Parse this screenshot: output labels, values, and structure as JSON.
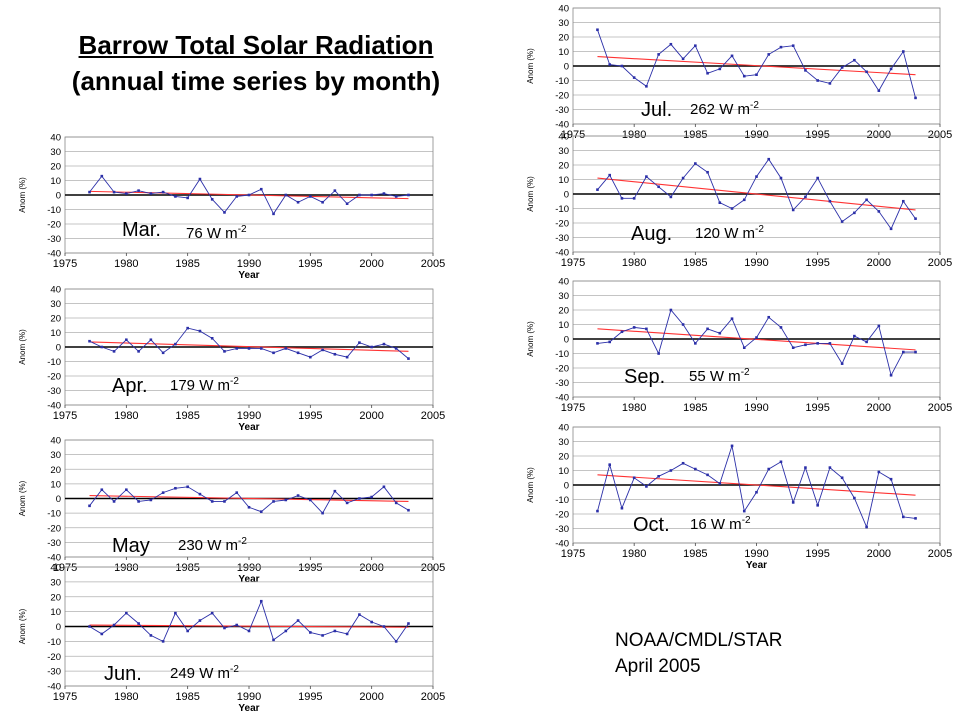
{
  "title": {
    "line1": "Barrow Total Solar Radiation",
    "line2": "(annual time series by month)"
  },
  "credit": {
    "line1": "NOAA/CMDL/STAR",
    "line2": "April 2005"
  },
  "colors": {
    "series": "#2b2fa8",
    "trend": "#ff3333",
    "zero_line": "#000000",
    "grid": "#b0b0b0"
  },
  "chart_data": [
    {
      "id": "mar",
      "type": "line",
      "month_label": "Mar.",
      "mean_label": "76 W m",
      "mean_exp": "-2",
      "xlabel": "Year",
      "ylabel": "Anom (%)",
      "xlim": [
        1975,
        2005
      ],
      "ylim": [
        -40,
        40
      ],
      "xticks": [
        1975,
        1980,
        1985,
        1990,
        1995,
        2000,
        2005
      ],
      "yticks": [
        -40,
        -30,
        -20,
        -10,
        0,
        10,
        20,
        30,
        40
      ],
      "grid": true,
      "x": [
        1977,
        1978,
        1979,
        1980,
        1981,
        1982,
        1983,
        1984,
        1985,
        1986,
        1987,
        1988,
        1989,
        1990,
        1991,
        1992,
        1993,
        1994,
        1995,
        1996,
        1997,
        1998,
        1999,
        2000,
        2001,
        2002,
        2003
      ],
      "values": [
        2,
        13,
        2,
        1,
        3,
        1,
        2,
        -1,
        -2,
        11,
        -3,
        -12,
        -1,
        0,
        4,
        -13,
        0,
        -5,
        -1,
        -5,
        3,
        -6,
        0,
        0,
        1,
        -1,
        0
      ],
      "trend": [
        [
          1977,
          2.5
        ],
        [
          2003,
          -2.5
        ]
      ]
    },
    {
      "id": "apr",
      "type": "line",
      "month_label": "Apr.",
      "mean_label": "179 W m",
      "mean_exp": "-2",
      "xlabel": "Year",
      "ylabel": "Anom (%)",
      "xlim": [
        1975,
        2005
      ],
      "ylim": [
        -40,
        40
      ],
      "xticks": [
        1975,
        1980,
        1985,
        1990,
        1995,
        2000,
        2005
      ],
      "yticks": [
        -40,
        -30,
        -20,
        -10,
        0,
        10,
        20,
        30,
        40
      ],
      "grid": true,
      "x": [
        1977,
        1978,
        1979,
        1980,
        1981,
        1982,
        1983,
        1984,
        1985,
        1986,
        1987,
        1988,
        1989,
        1990,
        1991,
        1992,
        1993,
        1994,
        1995,
        1996,
        1997,
        1998,
        1999,
        2000,
        2001,
        2002,
        2003
      ],
      "values": [
        4,
        0,
        -3,
        5,
        -3,
        5,
        -4,
        2,
        13,
        11,
        6,
        -3,
        -1,
        -1,
        -1,
        -4,
        -1,
        -4,
        -7,
        -2,
        -5,
        -7,
        3,
        0,
        2,
        -1,
        -8
      ],
      "trend": [
        [
          1977,
          3.5
        ],
        [
          2003,
          -3
        ]
      ]
    },
    {
      "id": "may",
      "type": "line",
      "month_label": "May",
      "mean_label": "230 W m",
      "mean_exp": "-2",
      "xlabel": "Year",
      "ylabel": "Anom (%)",
      "xlim": [
        1975,
        2005
      ],
      "ylim": [
        -40,
        40
      ],
      "xticks": [
        1975,
        1980,
        1985,
        1990,
        1995,
        2000,
        2005
      ],
      "yticks": [
        -40,
        -30,
        -20,
        -10,
        0,
        10,
        20,
        30,
        40
      ],
      "grid": true,
      "x": [
        1977,
        1978,
        1979,
        1980,
        1981,
        1982,
        1983,
        1984,
        1985,
        1986,
        1987,
        1988,
        1989,
        1990,
        1991,
        1992,
        1993,
        1994,
        1995,
        1996,
        1997,
        1998,
        1999,
        2000,
        2001,
        2002,
        2003
      ],
      "values": [
        -5,
        6,
        -2,
        6,
        -2,
        -1,
        4,
        7,
        8,
        3,
        -2,
        -2,
        4,
        -6,
        -9,
        -2,
        -1,
        2,
        -1,
        -10,
        5,
        -3,
        0,
        1,
        8,
        -3,
        -8
      ],
      "trend": [
        [
          1977,
          2
        ],
        [
          2003,
          -2
        ]
      ]
    },
    {
      "id": "jun",
      "type": "line",
      "month_label": "Jun.",
      "mean_label": "249 W m",
      "mean_exp": "-2",
      "xlabel": "Year",
      "ylabel": "Anom (%)",
      "xlim": [
        1975,
        2005
      ],
      "ylim": [
        -40,
        40
      ],
      "xticks": [
        1975,
        1980,
        1985,
        1990,
        1995,
        2000,
        2005
      ],
      "yticks": [
        -40,
        -30,
        -20,
        -10,
        0,
        10,
        20,
        30,
        40
      ],
      "grid": true,
      "x": [
        1977,
        1978,
        1979,
        1980,
        1981,
        1982,
        1983,
        1984,
        1985,
        1986,
        1987,
        1988,
        1989,
        1990,
        1991,
        1992,
        1993,
        1994,
        1995,
        1996,
        1997,
        1998,
        1999,
        2000,
        2001,
        2002,
        2003
      ],
      "values": [
        0,
        -5,
        1,
        9,
        2,
        -6,
        -10,
        9,
        -3,
        4,
        9,
        -1,
        1,
        -3,
        17,
        -9,
        -3,
        4,
        -4,
        -6,
        -3,
        -5,
        8,
        3,
        0,
        -10,
        2
      ],
      "trend": [
        [
          1977,
          1
        ],
        [
          2003,
          -0.5
        ]
      ]
    },
    {
      "id": "jul",
      "type": "line",
      "month_label": "Jul.",
      "mean_label": "262 W m",
      "mean_exp": "-2",
      "xlabel": "",
      "ylabel": "Anom (%)",
      "xlim": [
        1975,
        2005
      ],
      "ylim": [
        -40,
        40
      ],
      "xticks": [
        1975,
        1980,
        1985,
        1990,
        1995,
        2000,
        2005
      ],
      "yticks": [
        -40,
        -30,
        -20,
        -10,
        0,
        10,
        20,
        30,
        40
      ],
      "grid": true,
      "x": [
        1977,
        1978,
        1979,
        1980,
        1981,
        1982,
        1983,
        1984,
        1985,
        1986,
        1987,
        1988,
        1989,
        1990,
        1991,
        1992,
        1993,
        1994,
        1995,
        1996,
        1997,
        1998,
        1999,
        2000,
        2001,
        2002,
        2003
      ],
      "values": [
        25,
        1,
        0,
        -8,
        -14,
        8,
        15,
        5,
        14,
        -5,
        -2,
        7,
        -7,
        -6,
        8,
        13,
        14,
        -3,
        -10,
        -12,
        -1,
        4,
        -4,
        -17,
        -2,
        10,
        -22
      ],
      "trend": [
        [
          1977,
          6.5
        ],
        [
          2003,
          -6
        ]
      ]
    },
    {
      "id": "aug",
      "type": "line",
      "month_label": "Aug.",
      "mean_label": "120 W m",
      "mean_exp": "-2",
      "xlabel": "",
      "ylabel": "Anom (%)",
      "xlim": [
        1975,
        2005
      ],
      "ylim": [
        -40,
        40
      ],
      "xticks": [
        1975,
        1980,
        1985,
        1990,
        1995,
        2000,
        2005
      ],
      "yticks": [
        -40,
        -30,
        -20,
        -10,
        0,
        10,
        20,
        30,
        40
      ],
      "grid": true,
      "x": [
        1977,
        1978,
        1979,
        1980,
        1981,
        1982,
        1983,
        1984,
        1985,
        1986,
        1987,
        1988,
        1989,
        1990,
        1991,
        1992,
        1993,
        1994,
        1995,
        1996,
        1997,
        1998,
        1999,
        2000,
        2001,
        2002,
        2003
      ],
      "values": [
        3,
        13,
        -3,
        -3,
        12,
        5,
        -2,
        11,
        21,
        15,
        -6,
        -10,
        -4,
        12,
        24,
        11,
        -11,
        -2,
        11,
        -5,
        -19,
        -13,
        -4,
        -12,
        -24,
        -5,
        -17
      ],
      "trend": [
        [
          1977,
          11
        ],
        [
          2003,
          -11
        ]
      ]
    },
    {
      "id": "sep",
      "type": "line",
      "month_label": "Sep.",
      "mean_label": "55 W m",
      "mean_exp": "-2",
      "xlabel": "",
      "ylabel": "Anom (%)",
      "xlim": [
        1975,
        2005
      ],
      "ylim": [
        -40,
        40
      ],
      "xticks": [
        1975,
        1980,
        1985,
        1990,
        1995,
        2000,
        2005
      ],
      "yticks": [
        -40,
        -30,
        -20,
        -10,
        0,
        10,
        20,
        30,
        40
      ],
      "grid": true,
      "x": [
        1977,
        1978,
        1979,
        1980,
        1981,
        1982,
        1983,
        1984,
        1985,
        1986,
        1987,
        1988,
        1989,
        1990,
        1991,
        1992,
        1993,
        1994,
        1995,
        1996,
        1997,
        1998,
        1999,
        2000,
        2001,
        2002,
        2003
      ],
      "values": [
        -3,
        -2,
        5,
        8,
        7,
        -10,
        20,
        10,
        -3,
        7,
        4,
        14,
        -6,
        1,
        15,
        8,
        -6,
        -4,
        -3,
        -3,
        -17,
        2,
        -2,
        9,
        -25,
        -9,
        -9
      ],
      "trend": [
        [
          1977,
          7
        ],
        [
          2003,
          -7.5
        ]
      ]
    },
    {
      "id": "oct",
      "type": "line",
      "month_label": "Oct.",
      "mean_label": "16 W m",
      "mean_exp": "-2",
      "xlabel": "Year",
      "ylabel": "Anom (%)",
      "xlim": [
        1975,
        2005
      ],
      "ylim": [
        -40,
        40
      ],
      "xticks": [
        1975,
        1980,
        1985,
        1990,
        1995,
        2000,
        2005
      ],
      "yticks": [
        -40,
        -30,
        -20,
        -10,
        0,
        10,
        20,
        30,
        40
      ],
      "grid": true,
      "x": [
        1977,
        1978,
        1979,
        1980,
        1981,
        1982,
        1983,
        1984,
        1985,
        1986,
        1987,
        1988,
        1989,
        1990,
        1991,
        1992,
        1993,
        1994,
        1995,
        1996,
        1997,
        1998,
        1999,
        2000,
        2001,
        2002,
        2003
      ],
      "values": [
        -18,
        14,
        -16,
        5,
        -1,
        6,
        10,
        15,
        11,
        7,
        1,
        27,
        -18,
        -5,
        11,
        16,
        -12,
        12,
        -14,
        12,
        5,
        -9,
        -29,
        9,
        4,
        -22,
        -23
      ],
      "trend": [
        [
          1977,
          7
        ],
        [
          2003,
          -7
        ]
      ]
    }
  ]
}
